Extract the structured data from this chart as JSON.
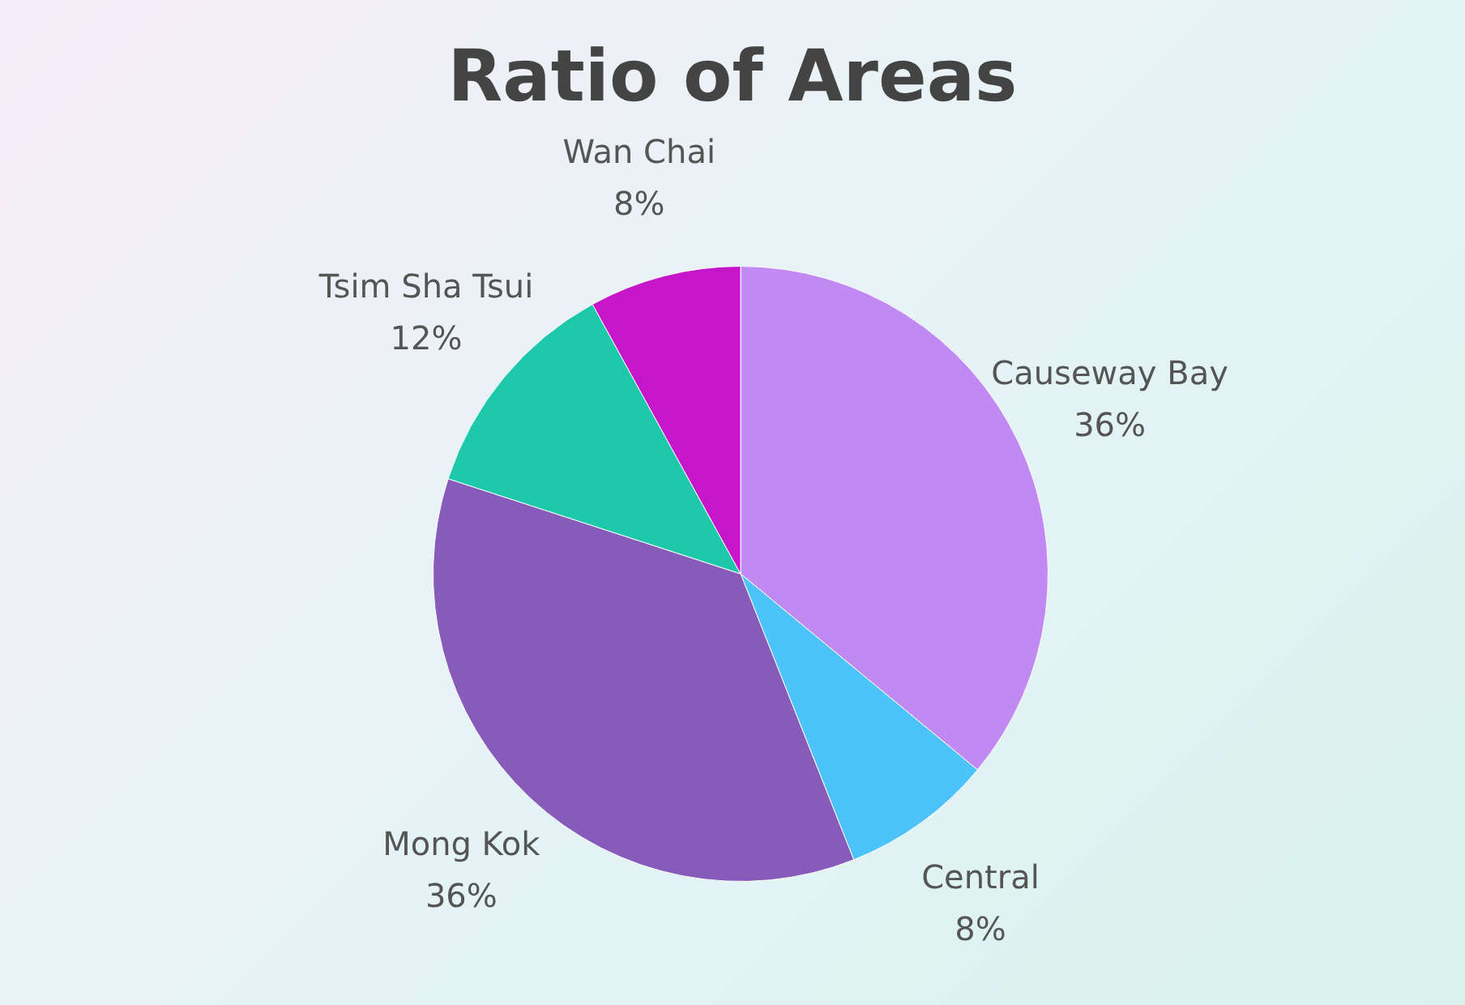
{
  "chart_data": {
    "type": "pie",
    "title": "Ratio of Areas",
    "categories": [
      "Causeway Bay",
      "Central",
      "Mong Kok",
      "Tsim Sha Tsui",
      "Wan Chai"
    ],
    "values": [
      36,
      8,
      36,
      12,
      8
    ],
    "value_labels": [
      "36%",
      "8%",
      "36%",
      "12%",
      "8%"
    ],
    "colors": [
      "#c08af2",
      "#4cc4fb",
      "#865bb9",
      "#1dc8ab",
      "#c516c9"
    ],
    "legend": false
  }
}
